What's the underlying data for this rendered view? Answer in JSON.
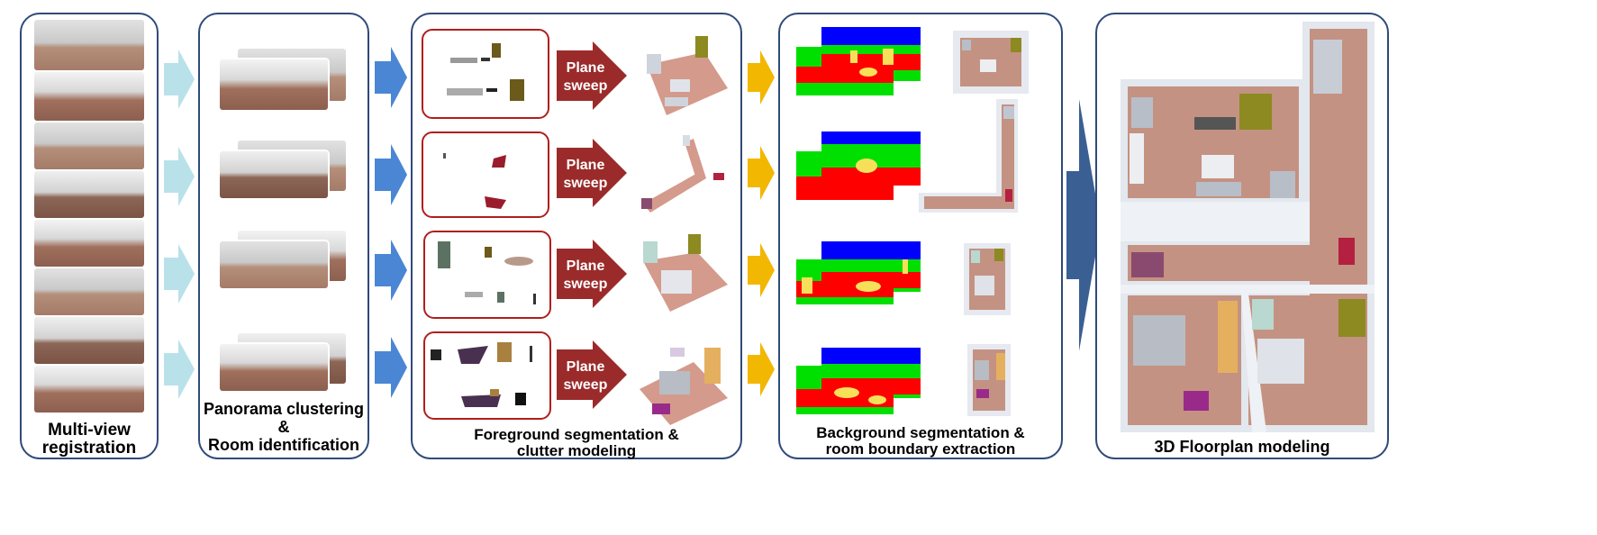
{
  "stages": {
    "registration": {
      "label_line1": "Multi-view",
      "label_line2": "registration"
    },
    "clustering": {
      "label_line1": "Panorama clustering",
      "label_line2": "&",
      "label_line3": "Room identification"
    },
    "foreground": {
      "label_line1": "Foreground segmentation &",
      "label_line2": "clutter modeling"
    },
    "background": {
      "label_line1": "Background segmentation &",
      "label_line2": "room boundary extraction"
    },
    "floorplan": {
      "label_line1": "3D Floorplan modeling"
    }
  },
  "plane_sweep": {
    "line1": "Plane",
    "line2": "sweep"
  },
  "colors": {
    "panel_border": "#2f4a7a",
    "light_arrow": "#b9e1ea",
    "blue_arrow": "#4a86d4",
    "sweep_arrow": "#9b2b2b",
    "yellow_arrow": "#f2b700",
    "big_arrow": "#3a5f93",
    "seg_blue": "#0000ff",
    "seg_green": "#00e000",
    "seg_red": "#ff0000",
    "seg_yellow": "#f6e05a"
  }
}
